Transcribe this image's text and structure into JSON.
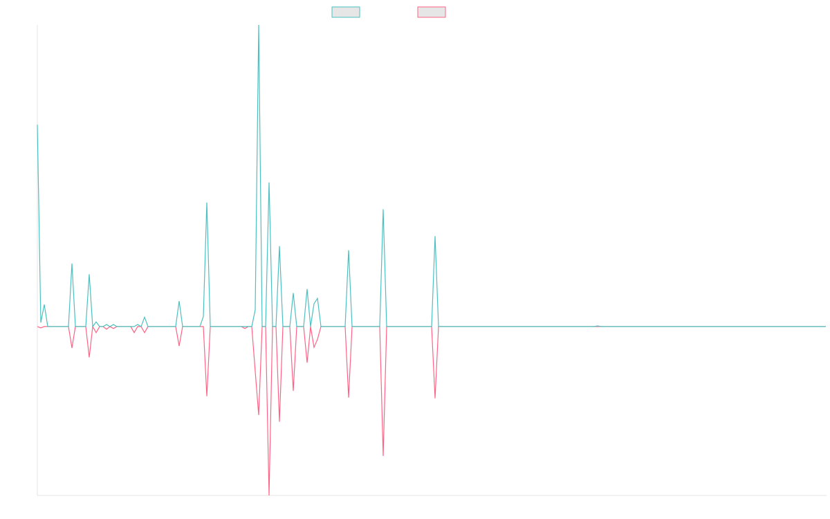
{
  "chart_data": {
    "type": "line",
    "x": [
      0,
      1,
      2,
      3,
      9,
      10,
      11,
      14,
      15,
      16,
      17,
      18,
      19,
      20,
      21,
      22,
      23,
      27,
      28,
      29,
      30,
      31,
      32,
      40,
      41,
      42,
      47,
      48,
      49,
      50,
      59,
      60,
      61,
      62,
      63,
      64,
      65,
      66,
      67,
      68,
      69,
      70,
      71,
      73,
      74,
      75,
      77,
      78,
      79,
      80,
      81,
      82,
      89,
      90,
      91,
      99,
      100,
      101,
      114,
      115,
      116,
      161,
      162,
      163,
      228
    ],
    "xlim": [
      0,
      228
    ],
    "ylim": [
      -25.2,
      45
    ],
    "series": [
      {
        "color": "#4bc0c0",
        "values": [
          30.1,
          0.6,
          3.3,
          0,
          0,
          9.4,
          0,
          0,
          7.8,
          0,
          0.7,
          0,
          0,
          0.3,
          0,
          0.3,
          0,
          0,
          0,
          0.3,
          0,
          1.4,
          0,
          0,
          3.8,
          0,
          0,
          1.5,
          18.5,
          0,
          0,
          0,
          0,
          0,
          2.5,
          45,
          0,
          0,
          21.5,
          0,
          0,
          12,
          0,
          0,
          5,
          0,
          0,
          5.6,
          0,
          3.4,
          4.2,
          0,
          0,
          11.4,
          0,
          0,
          17.5,
          0,
          0,
          13.5,
          0,
          0,
          0.1,
          0,
          0
        ]
      },
      {
        "color": "#ff6384",
        "values": [
          0,
          -0.2,
          0,
          0,
          0,
          -3.2,
          0,
          0,
          -4.6,
          0,
          -0.9,
          0,
          0,
          -0.4,
          0,
          -0.3,
          0,
          0,
          -0.9,
          0,
          0,
          -0.9,
          0,
          0,
          -2.9,
          0,
          0,
          0,
          -10.4,
          0,
          0,
          -0.3,
          0,
          0,
          -6.7,
          -13.2,
          0,
          0,
          -25.2,
          0,
          0,
          -14.2,
          0,
          0,
          -9.6,
          0,
          0,
          -5.4,
          0,
          -3.1,
          -1.9,
          0,
          0,
          -10.6,
          0,
          0,
          -19.3,
          0,
          0,
          -10.7,
          0,
          0,
          0,
          0,
          0
        ]
      }
    ]
  }
}
